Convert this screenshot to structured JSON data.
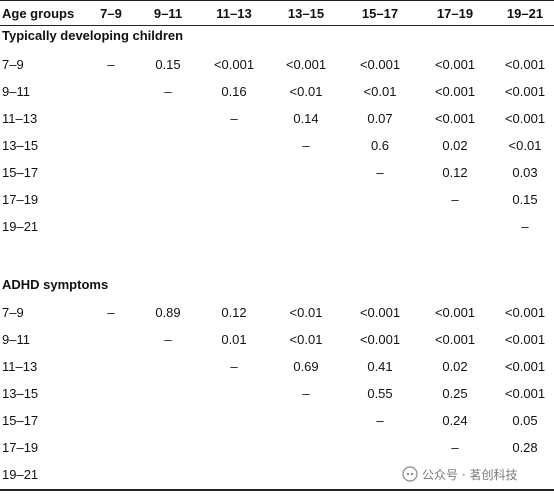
{
  "table": {
    "headers": [
      "Age groups",
      "7–9",
      "9–11",
      "11–13",
      "13–15",
      "15–17",
      "17–19",
      "19–21"
    ],
    "sections": [
      {
        "title": "Typically developing children",
        "rows": [
          {
            "label": "7–9",
            "cells": [
              "–",
              "0.15",
              "<0.001",
              "<0.001",
              "<0.001",
              "<0.001",
              "<0.001"
            ]
          },
          {
            "label": "9–11",
            "cells": [
              "",
              "–",
              "0.16",
              "<0.01",
              "<0.01",
              "<0.001",
              "<0.001"
            ]
          },
          {
            "label": "11–13",
            "cells": [
              "",
              "",
              "–",
              "0.14",
              "0.07",
              "<0.001",
              "<0.001"
            ]
          },
          {
            "label": "13–15",
            "cells": [
              "",
              "",
              "",
              "–",
              "0.6",
              "0.02",
              "<0.01"
            ]
          },
          {
            "label": "15–17",
            "cells": [
              "",
              "",
              "",
              "",
              "–",
              "0.12",
              "0.03"
            ]
          },
          {
            "label": "17–19",
            "cells": [
              "",
              "",
              "",
              "",
              "",
              "–",
              "0.15"
            ]
          },
          {
            "label": "19–21",
            "cells": [
              "",
              "",
              "",
              "",
              "",
              "",
              "–"
            ]
          }
        ]
      },
      {
        "title": "ADHD symptoms",
        "rows": [
          {
            "label": "7–9",
            "cells": [
              "–",
              "0.89",
              "0.12",
              "<0.01",
              "<0.001",
              "<0.001",
              "<0.001"
            ]
          },
          {
            "label": "9–11",
            "cells": [
              "",
              "–",
              "0.01",
              "<0.01",
              "<0.001",
              "<0.001",
              "<0.001"
            ]
          },
          {
            "label": "11–13",
            "cells": [
              "",
              "",
              "–",
              "0.69",
              "0.41",
              "0.02",
              "<0.001"
            ]
          },
          {
            "label": "13–15",
            "cells": [
              "",
              "",
              "",
              "–",
              "0.55",
              "0.25",
              "<0.001"
            ]
          },
          {
            "label": "15–17",
            "cells": [
              "",
              "",
              "",
              "",
              "–",
              "0.24",
              "0.05"
            ]
          },
          {
            "label": "17–19",
            "cells": [
              "",
              "",
              "",
              "",
              "",
              "–",
              "0.28"
            ]
          },
          {
            "label": "19–21",
            "cells": [
              "",
              "",
              "",
              "",
              "",
              "",
              ""
            ]
          }
        ]
      }
    ]
  },
  "watermark": {
    "text": "公众号 · 茗创科技",
    "icon": "wechat-icon",
    "color": "#8a8a8a"
  }
}
